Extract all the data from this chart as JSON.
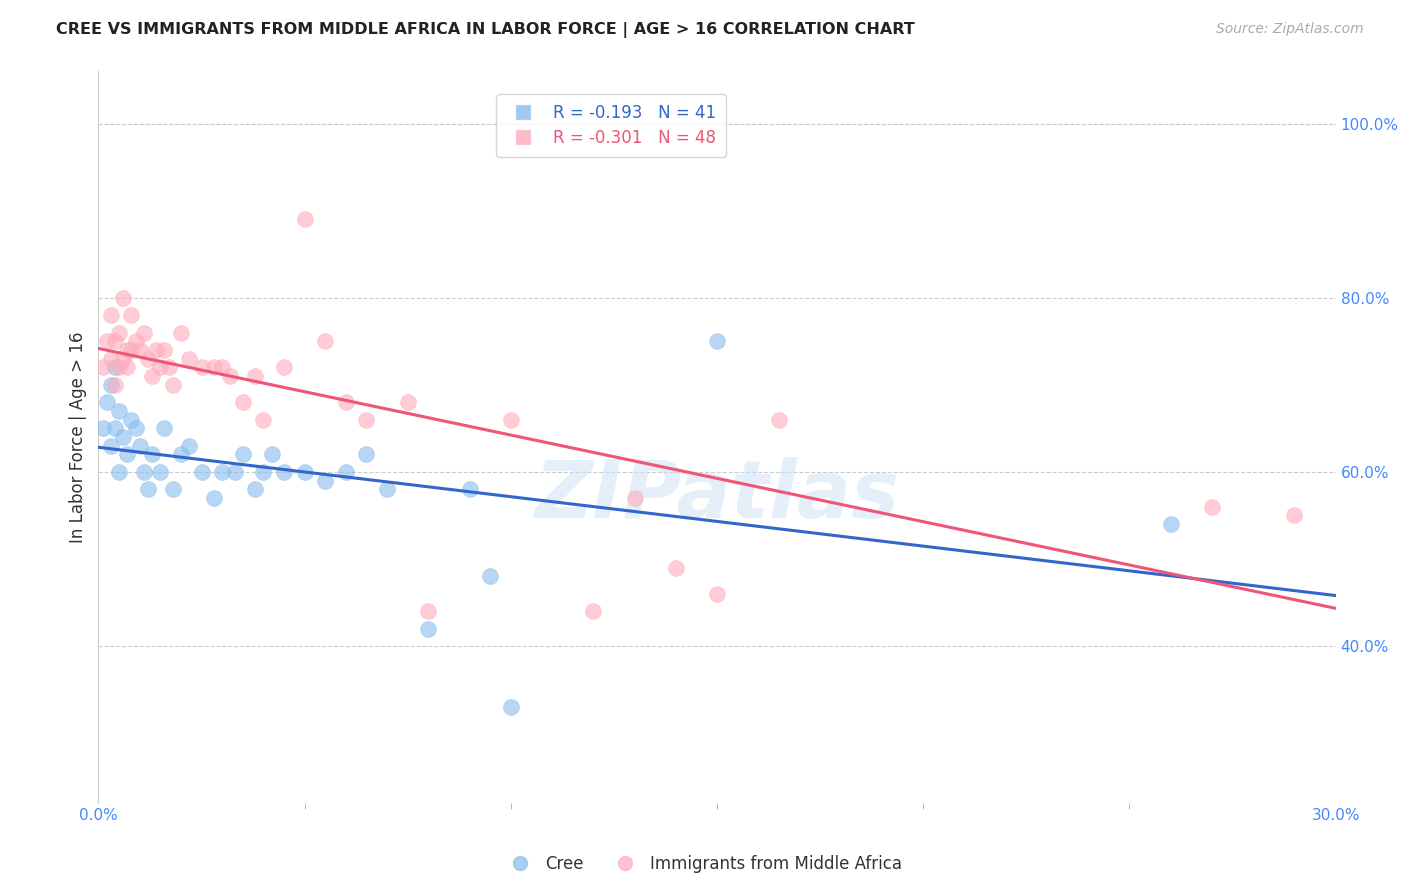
{
  "title": "CREE VS IMMIGRANTS FROM MIDDLE AFRICA IN LABOR FORCE | AGE > 16 CORRELATION CHART",
  "source": "Source: ZipAtlas.com",
  "ylabel": "In Labor Force | Age > 16",
  "xlim": [
    0.0,
    0.3
  ],
  "ylim": [
    0.22,
    1.06
  ],
  "yticks": [
    0.4,
    0.6,
    0.8,
    1.0
  ],
  "xticks": [
    0.0,
    0.3
  ],
  "background_color": "#ffffff",
  "grid_color": "#cccccc",
  "cree_color": "#88bbee",
  "immigrants_color": "#ffaabb",
  "cree_line_color": "#3366cc",
  "immigrants_line_color": "#ee5577",
  "legend_cree_R": "-0.193",
  "legend_cree_N": "41",
  "legend_imm_R": "-0.301",
  "legend_imm_N": "48",
  "watermark": "ZIPatlas",
  "cree_x": [
    0.001,
    0.002,
    0.003,
    0.003,
    0.004,
    0.004,
    0.005,
    0.005,
    0.006,
    0.007,
    0.008,
    0.009,
    0.01,
    0.011,
    0.012,
    0.013,
    0.015,
    0.016,
    0.018,
    0.02,
    0.022,
    0.025,
    0.028,
    0.03,
    0.033,
    0.035,
    0.038,
    0.04,
    0.042,
    0.045,
    0.05,
    0.055,
    0.06,
    0.065,
    0.07,
    0.08,
    0.09,
    0.095,
    0.1,
    0.15,
    0.26
  ],
  "cree_y": [
    0.65,
    0.68,
    0.7,
    0.63,
    0.72,
    0.65,
    0.67,
    0.6,
    0.64,
    0.62,
    0.66,
    0.65,
    0.63,
    0.6,
    0.58,
    0.62,
    0.6,
    0.65,
    0.58,
    0.62,
    0.63,
    0.6,
    0.57,
    0.6,
    0.6,
    0.62,
    0.58,
    0.6,
    0.62,
    0.6,
    0.6,
    0.59,
    0.6,
    0.62,
    0.58,
    0.42,
    0.58,
    0.48,
    0.33,
    0.75,
    0.54
  ],
  "imm_x": [
    0.001,
    0.002,
    0.003,
    0.003,
    0.004,
    0.004,
    0.005,
    0.005,
    0.006,
    0.006,
    0.007,
    0.007,
    0.008,
    0.008,
    0.009,
    0.01,
    0.011,
    0.012,
    0.013,
    0.014,
    0.015,
    0.016,
    0.017,
    0.018,
    0.02,
    0.022,
    0.025,
    0.028,
    0.03,
    0.032,
    0.035,
    0.038,
    0.04,
    0.045,
    0.05,
    0.055,
    0.06,
    0.065,
    0.075,
    0.08,
    0.1,
    0.12,
    0.13,
    0.14,
    0.15,
    0.165,
    0.27,
    0.29
  ],
  "imm_y": [
    0.72,
    0.75,
    0.73,
    0.78,
    0.75,
    0.7,
    0.76,
    0.72,
    0.73,
    0.8,
    0.74,
    0.72,
    0.74,
    0.78,
    0.75,
    0.74,
    0.76,
    0.73,
    0.71,
    0.74,
    0.72,
    0.74,
    0.72,
    0.7,
    0.76,
    0.73,
    0.72,
    0.72,
    0.72,
    0.71,
    0.68,
    0.71,
    0.66,
    0.72,
    0.89,
    0.75,
    0.68,
    0.66,
    0.68,
    0.44,
    0.66,
    0.44,
    0.57,
    0.49,
    0.46,
    0.66,
    0.56,
    0.55
  ]
}
